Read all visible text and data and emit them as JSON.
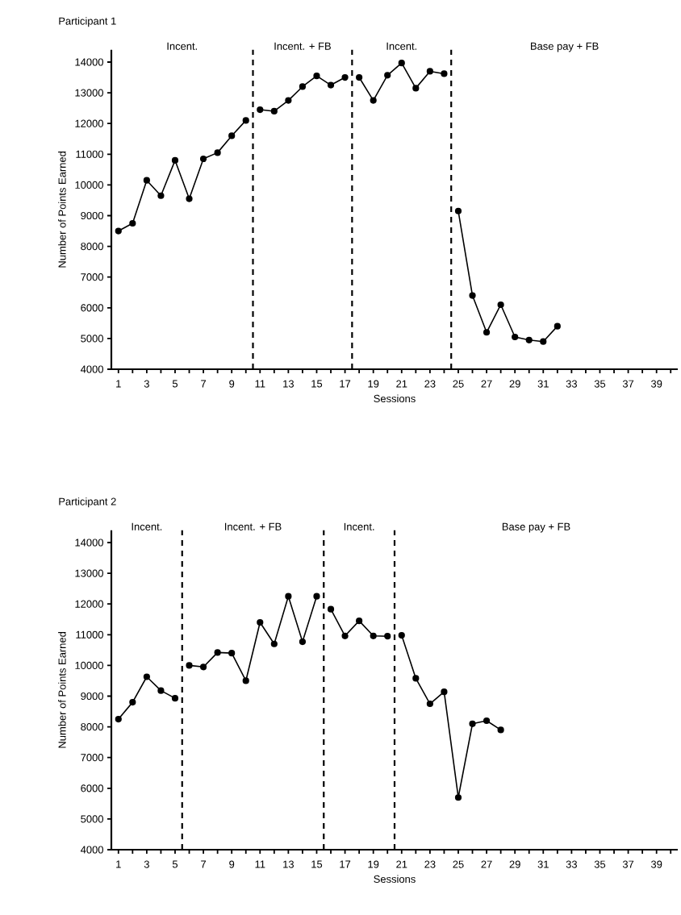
{
  "chart_data": [
    {
      "type": "line",
      "title": "Participant 1",
      "xlabel": "Sessions",
      "ylabel": "Number of Points Earned",
      "marker": "circle",
      "line_style": "solid",
      "series": [
        {
          "color": "#000000",
          "x": [
            1,
            2,
            3,
            4,
            5,
            6,
            7,
            8,
            9,
            10
          ],
          "values": [
            8500,
            8750,
            10150,
            9650,
            10800,
            9550,
            10850,
            11050,
            11600,
            12100
          ]
        },
        {
          "color": "#000000",
          "x": [
            11,
            12,
            13,
            14,
            15,
            16,
            17
          ],
          "values": [
            12450,
            12400,
            12750,
            13200,
            13550,
            13250,
            13500
          ]
        },
        {
          "color": "#000000",
          "x": [
            18,
            19,
            20,
            21,
            22,
            23,
            24
          ],
          "values": [
            13500,
            12750,
            13570,
            13970,
            13150,
            13700,
            13620
          ]
        },
        {
          "color": "#000000",
          "x": [
            25,
            26,
            27,
            28,
            29,
            30,
            31,
            32
          ],
          "values": [
            9150,
            6400,
            5200,
            6100,
            5050,
            4950,
            4900,
            5400
          ]
        }
      ],
      "xlim": [
        0.5,
        40.5
      ],
      "ylim": [
        4000,
        14400
      ],
      "xticks": [
        1,
        {
          "value": 2,
          "label": null
        },
        3,
        {
          "value": 4,
          "label": null
        },
        5,
        {
          "value": 6,
          "label": null
        },
        7,
        {
          "value": 8,
          "label": null
        },
        9,
        {
          "value": 10,
          "label": null
        },
        11,
        {
          "value": 12,
          "label": null
        },
        13,
        {
          "value": 14,
          "label": null
        },
        15,
        {
          "value": 16,
          "label": null
        },
        17,
        {
          "value": 18,
          "label": null
        },
        19,
        {
          "value": 20,
          "label": null
        },
        21,
        {
          "value": 22,
          "label": null
        },
        23,
        {
          "value": 24,
          "label": null
        },
        25,
        {
          "value": 26,
          "label": null
        },
        27,
        {
          "value": 28,
          "label": null
        },
        29,
        {
          "value": 30,
          "label": null
        },
        31,
        {
          "value": 32,
          "label": null
        },
        33,
        {
          "value": 34,
          "label": null
        },
        35,
        {
          "value": 36,
          "label": null
        },
        37,
        {
          "value": 38,
          "label": null
        },
        39,
        {
          "value": 40,
          "label": null
        }
      ],
      "yticks": [
        4000,
        5000,
        6000,
        7000,
        8000,
        9000,
        10000,
        11000,
        12000,
        13000,
        14000
      ],
      "ref_lines": [
        {
          "axis": "x",
          "value": 10.5,
          "line_style": "dashed"
        },
        {
          "axis": "x",
          "value": 17.5,
          "line_style": "dashed"
        },
        {
          "axis": "x",
          "value": 24.5,
          "line_style": "dashed"
        }
      ],
      "annotations": [
        "Incent.",
        "Incent. + FB",
        "Incent.",
        "Base pay + FB"
      ],
      "grid": false
    },
    {
      "type": "line",
      "title": "Participant 2",
      "xlabel": "Sessions",
      "ylabel": "Number of Points Earned",
      "marker": "circle",
      "line_style": "solid",
      "series": [
        {
          "color": "#000000",
          "x": [
            1,
            2,
            3,
            4,
            5
          ],
          "values": [
            8250,
            8800,
            9630,
            9180,
            8930
          ]
        },
        {
          "color": "#000000",
          "x": [
            6,
            7,
            8,
            9,
            10,
            11,
            12,
            13,
            14,
            15
          ],
          "values": [
            10000,
            9950,
            10420,
            10400,
            9500,
            11400,
            10700,
            12250,
            10770,
            12250
          ]
        },
        {
          "color": "#000000",
          "x": [
            16,
            17,
            18,
            19,
            20
          ],
          "values": [
            11830,
            10960,
            11450,
            10960,
            10950
          ]
        },
        {
          "color": "#000000",
          "x": [
            21,
            22,
            23,
            24,
            25,
            26,
            27,
            28
          ],
          "values": [
            10980,
            9580,
            8750,
            9140,
            5700,
            8100,
            8200,
            7900
          ]
        }
      ],
      "xlim": [
        0.5,
        40.5
      ],
      "ylim": [
        4000,
        14400
      ],
      "xticks": [
        1,
        {
          "value": 2,
          "label": null
        },
        3,
        {
          "value": 4,
          "label": null
        },
        5,
        {
          "value": 6,
          "label": null
        },
        7,
        {
          "value": 8,
          "label": null
        },
        9,
        {
          "value": 10,
          "label": null
        },
        11,
        {
          "value": 12,
          "label": null
        },
        13,
        {
          "value": 14,
          "label": null
        },
        15,
        {
          "value": 16,
          "label": null
        },
        17,
        {
          "value": 18,
          "label": null
        },
        19,
        {
          "value": 20,
          "label": null
        },
        21,
        {
          "value": 22,
          "label": null
        },
        23,
        {
          "value": 24,
          "label": null
        },
        25,
        {
          "value": 26,
          "label": null
        },
        27,
        {
          "value": 28,
          "label": null
        },
        29,
        {
          "value": 30,
          "label": null
        },
        31,
        {
          "value": 32,
          "label": null
        },
        33,
        {
          "value": 34,
          "label": null
        },
        35,
        {
          "value": 36,
          "label": null
        },
        37,
        {
          "value": 38,
          "label": null
        },
        39,
        {
          "value": 40,
          "label": null
        }
      ],
      "yticks": [
        4000,
        5000,
        6000,
        7000,
        8000,
        9000,
        10000,
        11000,
        12000,
        13000,
        14000
      ],
      "ref_lines": [
        {
          "axis": "x",
          "value": 5.5,
          "line_style": "dashed"
        },
        {
          "axis": "x",
          "value": 15.5,
          "line_style": "dashed"
        },
        {
          "axis": "x",
          "value": 20.5,
          "line_style": "dashed"
        }
      ],
      "annotations": [
        "Incent.",
        "Incent. + FB",
        "Incent.",
        "Base pay + FB"
      ],
      "grid": false
    }
  ]
}
